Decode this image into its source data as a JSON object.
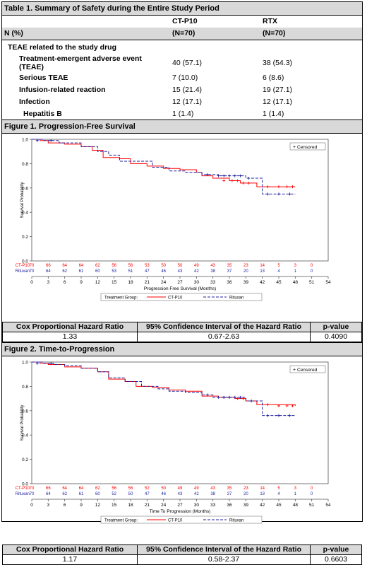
{
  "table1": {
    "title": "Table 1. Summary of Safety during the Entire Study Period",
    "col1_line1": "",
    "col2_line1": "CT-P10",
    "col3_line1": "RTX",
    "col1_line2": "N (%)",
    "col2_line2": "(N=70)",
    "col3_line2": "(N=70)",
    "section": "TEAE related to the study drug",
    "rows": [
      {
        "label": "Treatment-emergent adverse event (TEAE)",
        "ctp10": "40 (57.1)",
        "rtx": "38 (54.3)"
      },
      {
        "label": "Serious TEAE",
        "ctp10": "7 (10.0)",
        "rtx": "6 (8.6)"
      },
      {
        "label": "Infusion-related reaction",
        "ctp10": "15 (21.4)",
        "rtx": "19 (27.1)"
      },
      {
        "label": "Infection",
        "ctp10": "12 (17.1)",
        "rtx": "12 (17.1)"
      },
      {
        "label": "Hepatitis B",
        "ctp10": "1 (1.4)",
        "rtx": "1 (1.4)"
      }
    ]
  },
  "colors": {
    "ctp10": "#ff0000",
    "rituxan": "#1f1f9e",
    "header_bg": "#d9d9d9"
  },
  "figures": [
    {
      "title": "Figure 1. Progression-Free Survival",
      "legend_censored": "Censored",
      "legend_group": "Treatment Group:",
      "hr_headers": [
        "Cox Proportional Hazard Ratio",
        "95% Confidence Interval of the Hazard Ratio",
        "p-value"
      ],
      "hr_values": [
        "1.33",
        "0.67-2.63",
        "0.4090"
      ],
      "chart_data": {
        "type": "line",
        "ylabel": "Survival Probability",
        "xlabel": "Progression Free Survival (Months)",
        "xlim": [
          0,
          54
        ],
        "ylim": [
          0,
          1
        ],
        "xticks": [
          0,
          3,
          6,
          9,
          12,
          15,
          18,
          21,
          24,
          27,
          30,
          33,
          36,
          39,
          42,
          45,
          48,
          51,
          54
        ],
        "yticks": [
          "0.0",
          "0.2",
          "0.4",
          "0.6",
          "0.8",
          "1.0"
        ],
        "series": [
          {
            "name": "CT-P10",
            "steps": [
              [
                0,
                1
              ],
              [
                1.5,
                0.99
              ],
              [
                3,
                0.97
              ],
              [
                6,
                0.96
              ],
              [
                9,
                0.94
              ],
              [
                11,
                0.91
              ],
              [
                13,
                0.85
              ],
              [
                16,
                0.84
              ],
              [
                18,
                0.8
              ],
              [
                21,
                0.78
              ],
              [
                24,
                0.76
              ],
              [
                27,
                0.75
              ],
              [
                30,
                0.73
              ],
              [
                31,
                0.7
              ],
              [
                33,
                0.68
              ],
              [
                36,
                0.66
              ],
              [
                38,
                0.64
              ],
              [
                41,
                0.61
              ],
              [
                48,
                0.61
              ]
            ],
            "censors": [
              [
                35,
                0.66
              ],
              [
                36.5,
                0.66
              ],
              [
                37.5,
                0.66
              ],
              [
                38.5,
                0.64
              ],
              [
                39.5,
                0.64
              ],
              [
                43,
                0.61
              ],
              [
                45,
                0.61
              ],
              [
                46.5,
                0.61
              ],
              [
                47.5,
                0.61
              ]
            ]
          },
          {
            "name": "Rituxan",
            "steps": [
              [
                0,
                1
              ],
              [
                2,
                0.99
              ],
              [
                3.5,
                0.99
              ],
              [
                5,
                0.97
              ],
              [
                9,
                0.94
              ],
              [
                12,
                0.9
              ],
              [
                14,
                0.87
              ],
              [
                16,
                0.82
              ],
              [
                19,
                0.82
              ],
              [
                22,
                0.77
              ],
              [
                25,
                0.74
              ],
              [
                28,
                0.73
              ],
              [
                31,
                0.71
              ],
              [
                34,
                0.7
              ],
              [
                39,
                0.68
              ],
              [
                42,
                0.55
              ],
              [
                48,
                0.55
              ]
            ],
            "censors": [
              [
                1,
                0.99
              ],
              [
                3.5,
                0.99
              ],
              [
                32,
                0.71
              ],
              [
                34,
                0.7
              ],
              [
                35,
                0.7
              ],
              [
                36,
                0.7
              ],
              [
                37,
                0.7
              ],
              [
                38,
                0.7
              ],
              [
                39.5,
                0.68
              ],
              [
                43,
                0.55
              ],
              [
                45,
                0.55
              ],
              [
                47,
                0.55
              ]
            ]
          }
        ],
        "at_risk": {
          "CT-P10": [
            "70",
            "66",
            "64",
            "64",
            "62",
            "56",
            "56",
            "53",
            "50",
            "50",
            "49",
            "43",
            "35",
            "23",
            "14",
            "5",
            "3",
            "0"
          ],
          "Rituxan": [
            "70",
            "64",
            "62",
            "61",
            "60",
            "53",
            "51",
            "47",
            "46",
            "43",
            "42",
            "38",
            "37",
            "20",
            "13",
            "4",
            "1",
            "0"
          ]
        }
      }
    },
    {
      "title": "Figure 2. Time-to-Progression",
      "legend_censored": "Censored",
      "legend_group": "Treatment Group:",
      "hr_headers": [
        "Cox Proportional Hazard Ratio",
        "95% Confidence Interval of the Hazard Ratio",
        "p-value"
      ],
      "hr_values": [
        "1.17",
        "0.58-2.37",
        "0.6603"
      ],
      "chart_data": {
        "type": "line",
        "ylabel": "Survival Probability",
        "xlabel": "Time To Progression (Months)",
        "xlim": [
          0,
          54
        ],
        "ylim": [
          0,
          1
        ],
        "xticks": [
          0,
          3,
          6,
          9,
          12,
          15,
          18,
          21,
          24,
          27,
          30,
          33,
          36,
          39,
          42,
          45,
          48,
          51,
          54
        ],
        "yticks": [
          "0.0",
          "0.2",
          "0.4",
          "0.6",
          "0.8",
          "1.0"
        ],
        "series": [
          {
            "name": "CT-P10",
            "steps": [
              [
                0,
                1
              ],
              [
                1.5,
                0.99
              ],
              [
                3,
                0.98
              ],
              [
                6,
                0.96
              ],
              [
                9,
                0.95
              ],
              [
                12,
                0.92
              ],
              [
                14,
                0.86
              ],
              [
                17,
                0.84
              ],
              [
                19,
                0.8
              ],
              [
                22,
                0.79
              ],
              [
                25,
                0.77
              ],
              [
                28,
                0.76
              ],
              [
                31,
                0.72
              ],
              [
                34,
                0.71
              ],
              [
                37,
                0.7
              ],
              [
                39,
                0.68
              ],
              [
                41,
                0.65
              ],
              [
                48,
                0.64
              ]
            ],
            "censors": [
              [
                35,
                0.71
              ],
              [
                36,
                0.71
              ],
              [
                37.5,
                0.7
              ],
              [
                38.5,
                0.7
              ],
              [
                40,
                0.68
              ],
              [
                43,
                0.65
              ],
              [
                45,
                0.64
              ],
              [
                46.5,
                0.64
              ],
              [
                47.5,
                0.64
              ]
            ]
          },
          {
            "name": "Rituxan",
            "steps": [
              [
                0,
                1
              ],
              [
                2,
                0.99
              ],
              [
                4,
                0.98
              ],
              [
                6,
                0.97
              ],
              [
                9,
                0.95
              ],
              [
                12,
                0.92
              ],
              [
                14,
                0.87
              ],
              [
                17,
                0.84
              ],
              [
                20,
                0.8
              ],
              [
                23,
                0.78
              ],
              [
                25,
                0.76
              ],
              [
                28,
                0.75
              ],
              [
                31,
                0.73
              ],
              [
                33,
                0.71
              ],
              [
                39,
                0.68
              ],
              [
                42,
                0.56
              ],
              [
                48,
                0.56
              ]
            ],
            "censors": [
              [
                1,
                0.99
              ],
              [
                3.5,
                0.99
              ],
              [
                32,
                0.73
              ],
              [
                34,
                0.71
              ],
              [
                35,
                0.71
              ],
              [
                36,
                0.71
              ],
              [
                37,
                0.71
              ],
              [
                38,
                0.71
              ],
              [
                40,
                0.68
              ],
              [
                43,
                0.56
              ],
              [
                45,
                0.56
              ],
              [
                47,
                0.56
              ]
            ]
          }
        ],
        "at_risk": {
          "CT-P10": [
            "70",
            "66",
            "64",
            "64",
            "62",
            "56",
            "56",
            "52",
            "50",
            "49",
            "49",
            "43",
            "35",
            "23",
            "14",
            "5",
            "3",
            "0"
          ],
          "Rituxan": [
            "70",
            "64",
            "62",
            "61",
            "60",
            "52",
            "50",
            "47",
            "46",
            "43",
            "42",
            "38",
            "37",
            "20",
            "13",
            "4",
            "1",
            "0"
          ]
        }
      }
    }
  ]
}
